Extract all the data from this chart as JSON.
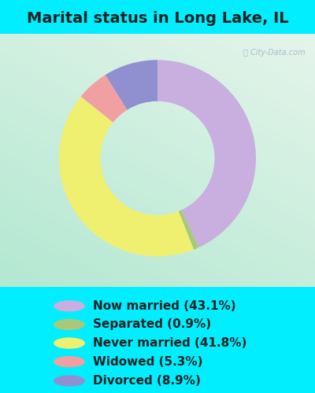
{
  "title": "Marital status in Long Lake, IL",
  "slices": [
    43.1,
    0.9,
    41.8,
    5.3,
    8.9
  ],
  "labels": [
    "Now married (43.1%)",
    "Separated (0.9%)",
    "Never married (41.8%)",
    "Widowed (5.3%)",
    "Divorced (8.9%)"
  ],
  "colors": [
    "#c9aee0",
    "#a8c87a",
    "#f0f070",
    "#f0a0a0",
    "#9090d0"
  ],
  "cyan_bg": "#00eeff",
  "title_fontsize": 14,
  "legend_fontsize": 11,
  "watermark_color": "#aabbcc",
  "title_color": "#222222",
  "legend_text_color": "#222222",
  "start_angle": 90,
  "donut_width": 0.42
}
